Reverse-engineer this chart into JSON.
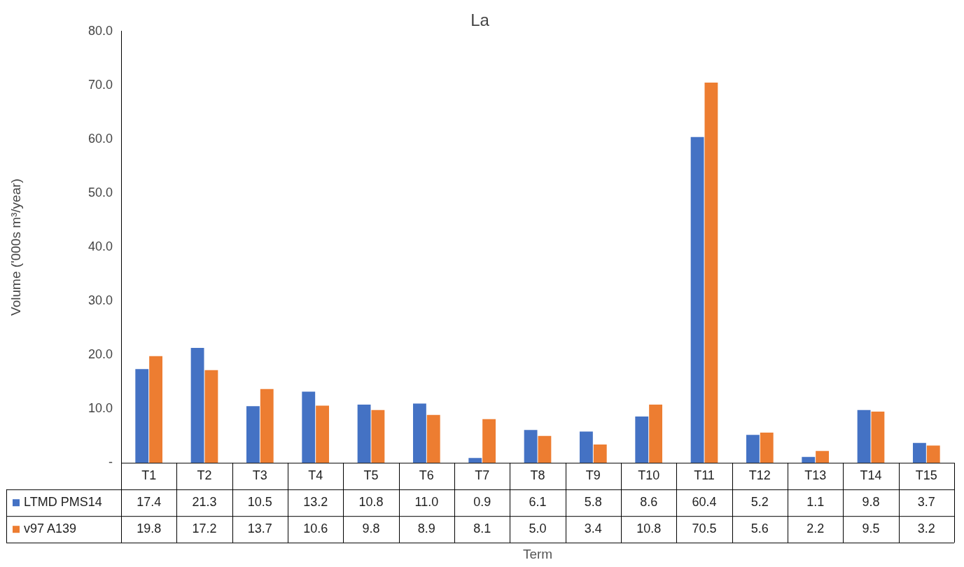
{
  "chart_data": {
    "type": "bar",
    "title": "La",
    "xlabel": "Term",
    "ylabel": "Volume ('000s m³/year)",
    "categories": [
      "T1",
      "T2",
      "T3",
      "T4",
      "T5",
      "T6",
      "T7",
      "T8",
      "T9",
      "T10",
      "T11",
      "T12",
      "T13",
      "T14",
      "T15"
    ],
    "series": [
      {
        "name": "LTMD PMS14",
        "color": "#4472c4",
        "values": [
          17.4,
          21.3,
          10.5,
          13.2,
          10.8,
          11.0,
          0.9,
          6.1,
          5.8,
          8.6,
          60.4,
          5.2,
          1.1,
          9.8,
          3.7
        ],
        "value_labels": [
          "17.4",
          "21.3",
          "10.5",
          "13.2",
          "10.8",
          "11.0",
          "0.9",
          "6.1",
          "5.8",
          "8.6",
          "60.4",
          "5.2",
          "1.1",
          "9.8",
          "3.7"
        ]
      },
      {
        "name": "v97 A139",
        "color": "#ed7d31",
        "values": [
          19.8,
          17.2,
          13.7,
          10.6,
          9.8,
          8.9,
          8.1,
          5.0,
          3.4,
          10.8,
          70.5,
          5.6,
          2.2,
          9.5,
          3.2
        ],
        "value_labels": [
          "19.8",
          "17.2",
          "13.7",
          "10.6",
          "9.8",
          "8.9",
          "8.1",
          "5.0",
          "3.4",
          "10.8",
          "70.5",
          "5.6",
          "2.2",
          "9.5",
          "3.2"
        ]
      }
    ],
    "ylim": [
      0,
      80
    ],
    "yticks": [
      {
        "value": 0,
        "label": "-"
      },
      {
        "value": 10,
        "label": "10.0"
      },
      {
        "value": 20,
        "label": "20.0"
      },
      {
        "value": 30,
        "label": "30.0"
      },
      {
        "value": 40,
        "label": "40.0"
      },
      {
        "value": 50,
        "label": "50.0"
      },
      {
        "value": 60,
        "label": "60.0"
      },
      {
        "value": 70,
        "label": "70.0"
      },
      {
        "value": 80,
        "label": "80.0"
      }
    ],
    "grid": false,
    "legend": "bottom left"
  }
}
